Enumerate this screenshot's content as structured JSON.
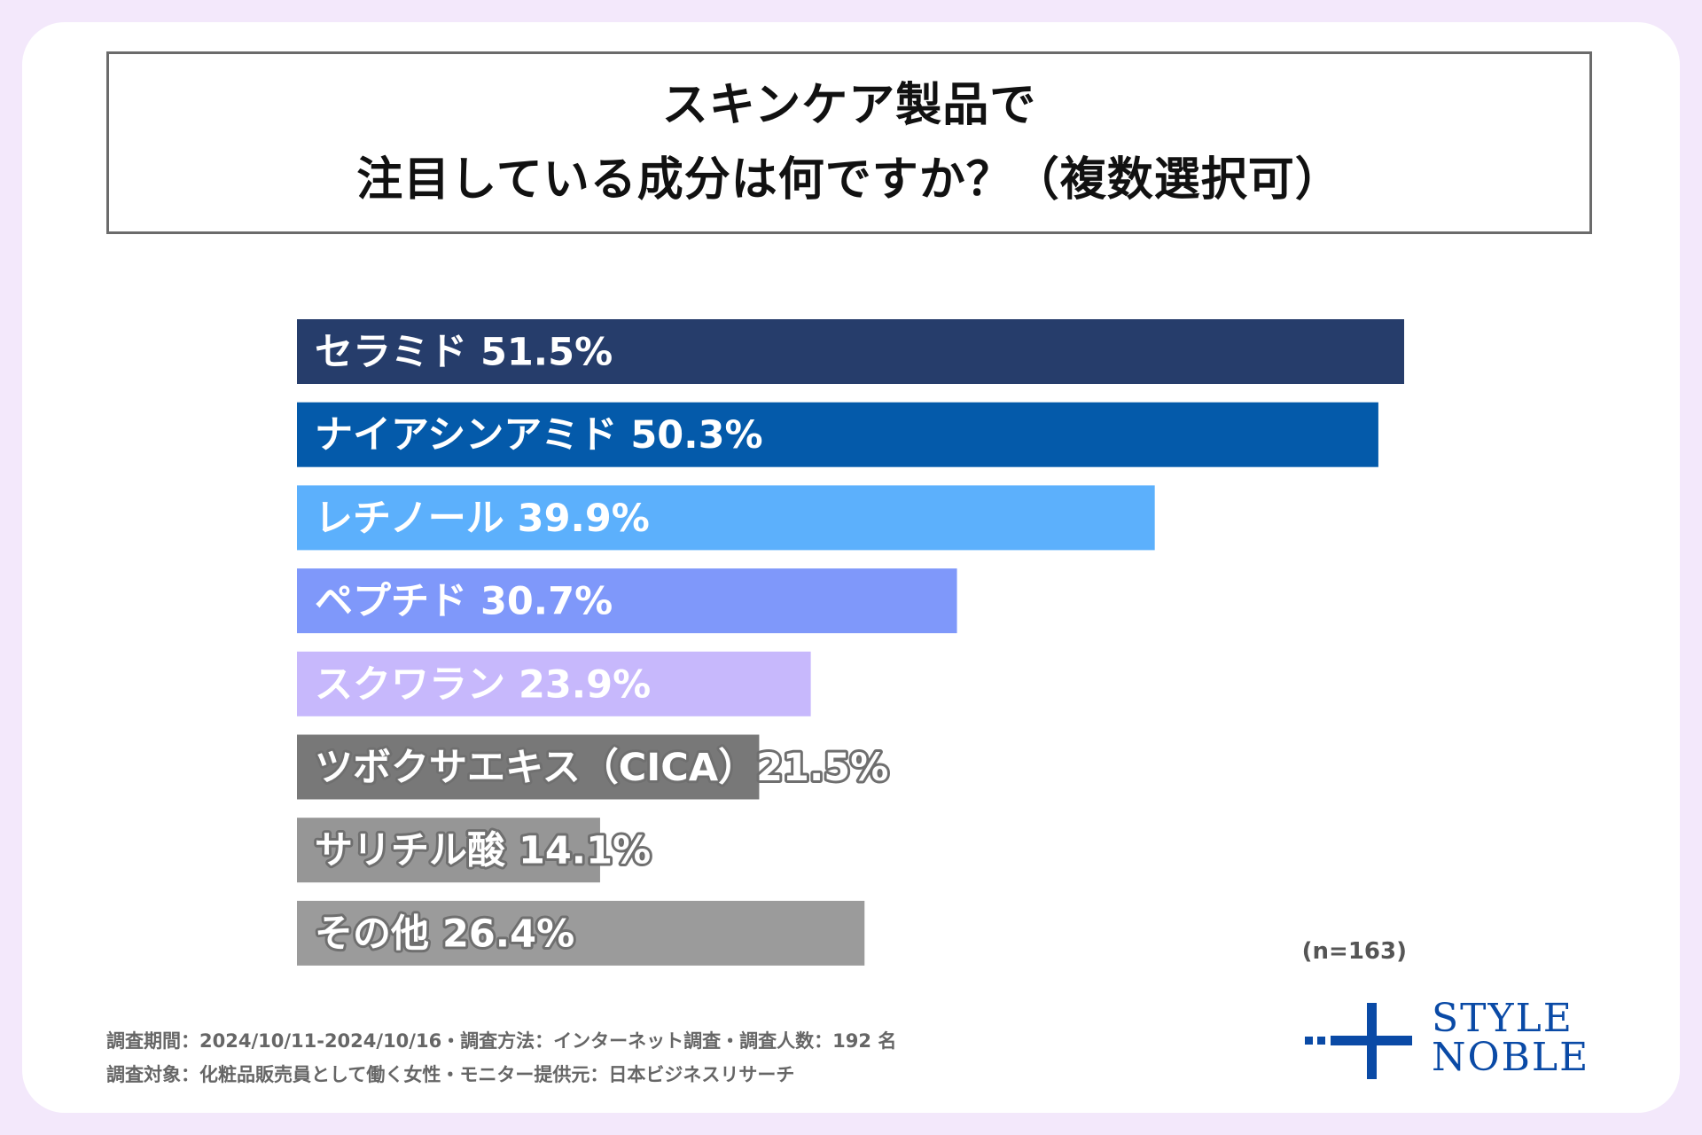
{
  "title": {
    "line1": "スキンケア製品で",
    "line2": "注目している成分は何ですか？（複数選択可）"
  },
  "chart_data": {
    "type": "bar",
    "orientation": "horizontal",
    "title": "スキンケア製品で注目している成分は何ですか？（複数選択可）",
    "xlim": [
      0,
      51.5
    ],
    "categories": [
      "セラミド",
      "ナイアシンアミド",
      "レチノール",
      "ペプチド",
      "スクワラン",
      "ツボクサエキス（CICA）",
      "サリチル酸",
      "その他"
    ],
    "values": [
      51.5,
      50.3,
      39.9,
      30.7,
      23.9,
      21.5,
      14.1,
      26.4
    ],
    "labels": [
      "セラミド 51.5%",
      "ナイアシンアミド 50.3%",
      "レチノール 39.9%",
      "ペプチド 30.7%",
      "スクワラン 23.9%",
      "ツボクサエキス（CICA）21.5%",
      "サリチル酸 14.1%",
      "その他 26.4%"
    ],
    "colors": [
      "#263d6b",
      "#045aaa",
      "#5cb0fc",
      "#7f98fa",
      "#c7b8fc",
      "#787878",
      "#969696",
      "#9b9b9b"
    ]
  },
  "sample_note": "(n=163)",
  "footer": {
    "line1": "調査期間：2024/10/11-2024/10/16・調査方法：インターネット調査・調査人数：192 名",
    "line2": "調査対象：化粧品販売員として働く女性・モニター提供元：日本ビジネスリサーチ"
  },
  "logo": {
    "line1": "STYLE",
    "line2": "NOBLE",
    "color": "#0a4aa6"
  }
}
